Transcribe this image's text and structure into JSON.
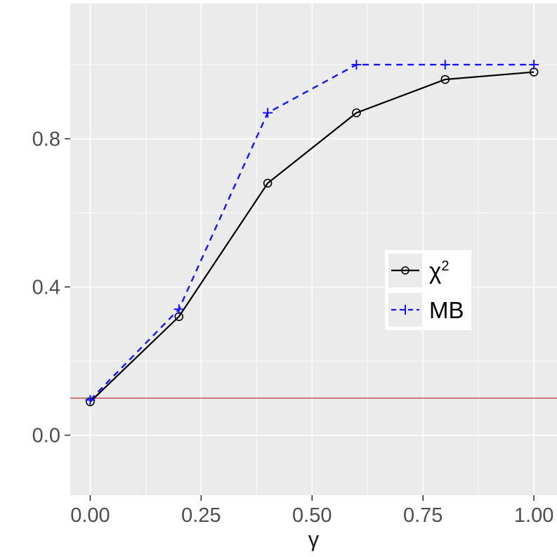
{
  "chart_data": {
    "type": "line",
    "title": "",
    "xlabel": "γ",
    "ylabel": "",
    "x": [
      0.0,
      0.2,
      0.4,
      0.6,
      0.8,
      1.0
    ],
    "series": [
      {
        "name": "chi-squared",
        "label": "χ",
        "label_sup": "2",
        "color": "#000000",
        "linestyle": "solid",
        "marker": "circle",
        "values": [
          0.09,
          0.32,
          0.68,
          0.87,
          0.96,
          0.98
        ]
      },
      {
        "name": "MB",
        "label": "MB",
        "label_sup": "",
        "color": "#1414FF",
        "linestyle": "dashed",
        "marker": "plus",
        "values": [
          0.095,
          0.34,
          0.87,
          1.0,
          1.0,
          1.0
        ]
      }
    ],
    "reference_line": {
      "y": 0.1,
      "color": "#B22222"
    },
    "x_ticks": [
      "0.00",
      "0.25",
      "0.50",
      "0.75",
      "1.00"
    ],
    "x_tick_values": [
      0.0,
      0.25,
      0.5,
      0.75,
      1.0
    ],
    "x_minor_values": [
      0.125,
      0.375,
      0.625,
      0.875
    ],
    "y_ticks": [
      "0.0",
      "0.4",
      "0.8"
    ],
    "y_tick_values": [
      0.0,
      0.4,
      0.8
    ],
    "y_minor_values": [
      0.2,
      0.6,
      1.0
    ],
    "xlim": [
      -0.045,
      1.052
    ],
    "ylim": [
      -0.162,
      1.165
    ],
    "panel_bg": "#EBEBEB",
    "grid_color": "#FFFFFF",
    "tick_label_color": "#4D4D4D",
    "axis_title_color": "#1a1a1a",
    "legend_position": "inside-right"
  }
}
